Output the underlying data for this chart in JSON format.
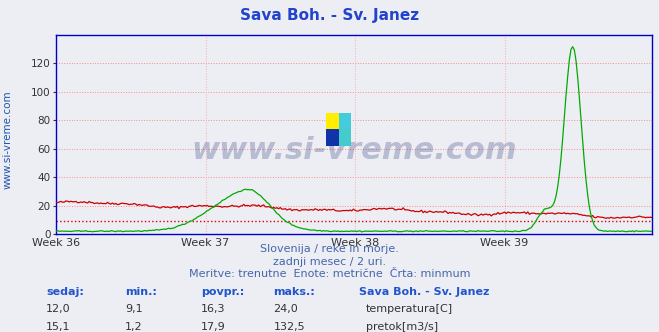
{
  "title": "Sava Boh. - Sv. Janez",
  "title_color": "#2244cc",
  "title_fontsize": 11,
  "bg_color": "#eceef4",
  "plot_bg_color": "#eceef4",
  "grid_color_h": "#ff8888",
  "grid_color_v": "#ffaaaa",
  "ylim": [
    0,
    140
  ],
  "yticks": [
    0,
    20,
    40,
    60,
    80,
    100,
    120
  ],
  "week_labels": [
    "Week 36",
    "Week 37",
    "Week 38",
    "Week 39"
  ],
  "subtitle_lines": [
    "Slovenija / reke in morje.",
    "zadnji mesec / 2 uri.",
    "Meritve: trenutne  Enote: metrične  Črta: minmum"
  ],
  "subtitle_color": "#4466aa",
  "subtitle_fontsize": 8,
  "table_headers": [
    "sedaj:",
    "min.:",
    "povpr.:",
    "maks.:"
  ],
  "table_header_color": "#2255cc",
  "station_label": "Sava Boh. - Sv. Janez",
  "rows": [
    {
      "values": [
        "12,0",
        "9,1",
        "16,3",
        "24,0"
      ],
      "label": "temperatura[C]",
      "color": "#cc0000"
    },
    {
      "values": [
        "15,1",
        "1,2",
        "17,9",
        "132,5"
      ],
      "label": "pretok[m3/s]",
      "color": "#00aa00"
    }
  ],
  "temp_color": "#cc0000",
  "flow_color": "#00aa00",
  "min_line_color": "#dd0000",
  "min_line_value": 9.1,
  "n_points": 360,
  "watermark_color": "#1a2a6e",
  "watermark_fontsize": 22,
  "axis_color": "#0000cc",
  "ylabel_color": "#2255aa",
  "ylabel_text": "www.si-vreme.com"
}
